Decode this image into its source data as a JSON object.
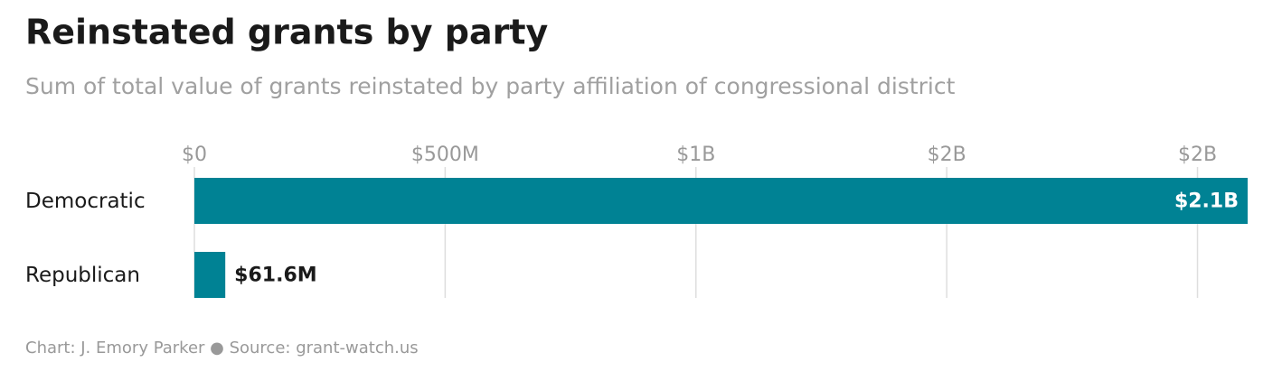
{
  "chart_data": {
    "type": "bar",
    "orientation": "horizontal",
    "title": "Reinstated grants by party",
    "subtitle": "Sum of total value of grants reinstated by party affiliation of congressional district",
    "categories": [
      "Democratic",
      "Republican"
    ],
    "values": [
      2100000000,
      61600000
    ],
    "value_labels": [
      "$2.1B",
      "$61.6M"
    ],
    "color": "#008294",
    "xlim": [
      0,
      2100000000
    ],
    "xticks": [
      {
        "value": 0,
        "label": "$0"
      },
      {
        "value": 500000000,
        "label": "$500M"
      },
      {
        "value": 1000000000,
        "label": "$1B"
      },
      {
        "value": 1500000000,
        "label": "$2B"
      },
      {
        "value": 2000000000,
        "label": "$2B"
      }
    ],
    "grid": true,
    "source": "Chart: J. Emory Parker ● Source: grant-watch.us"
  }
}
